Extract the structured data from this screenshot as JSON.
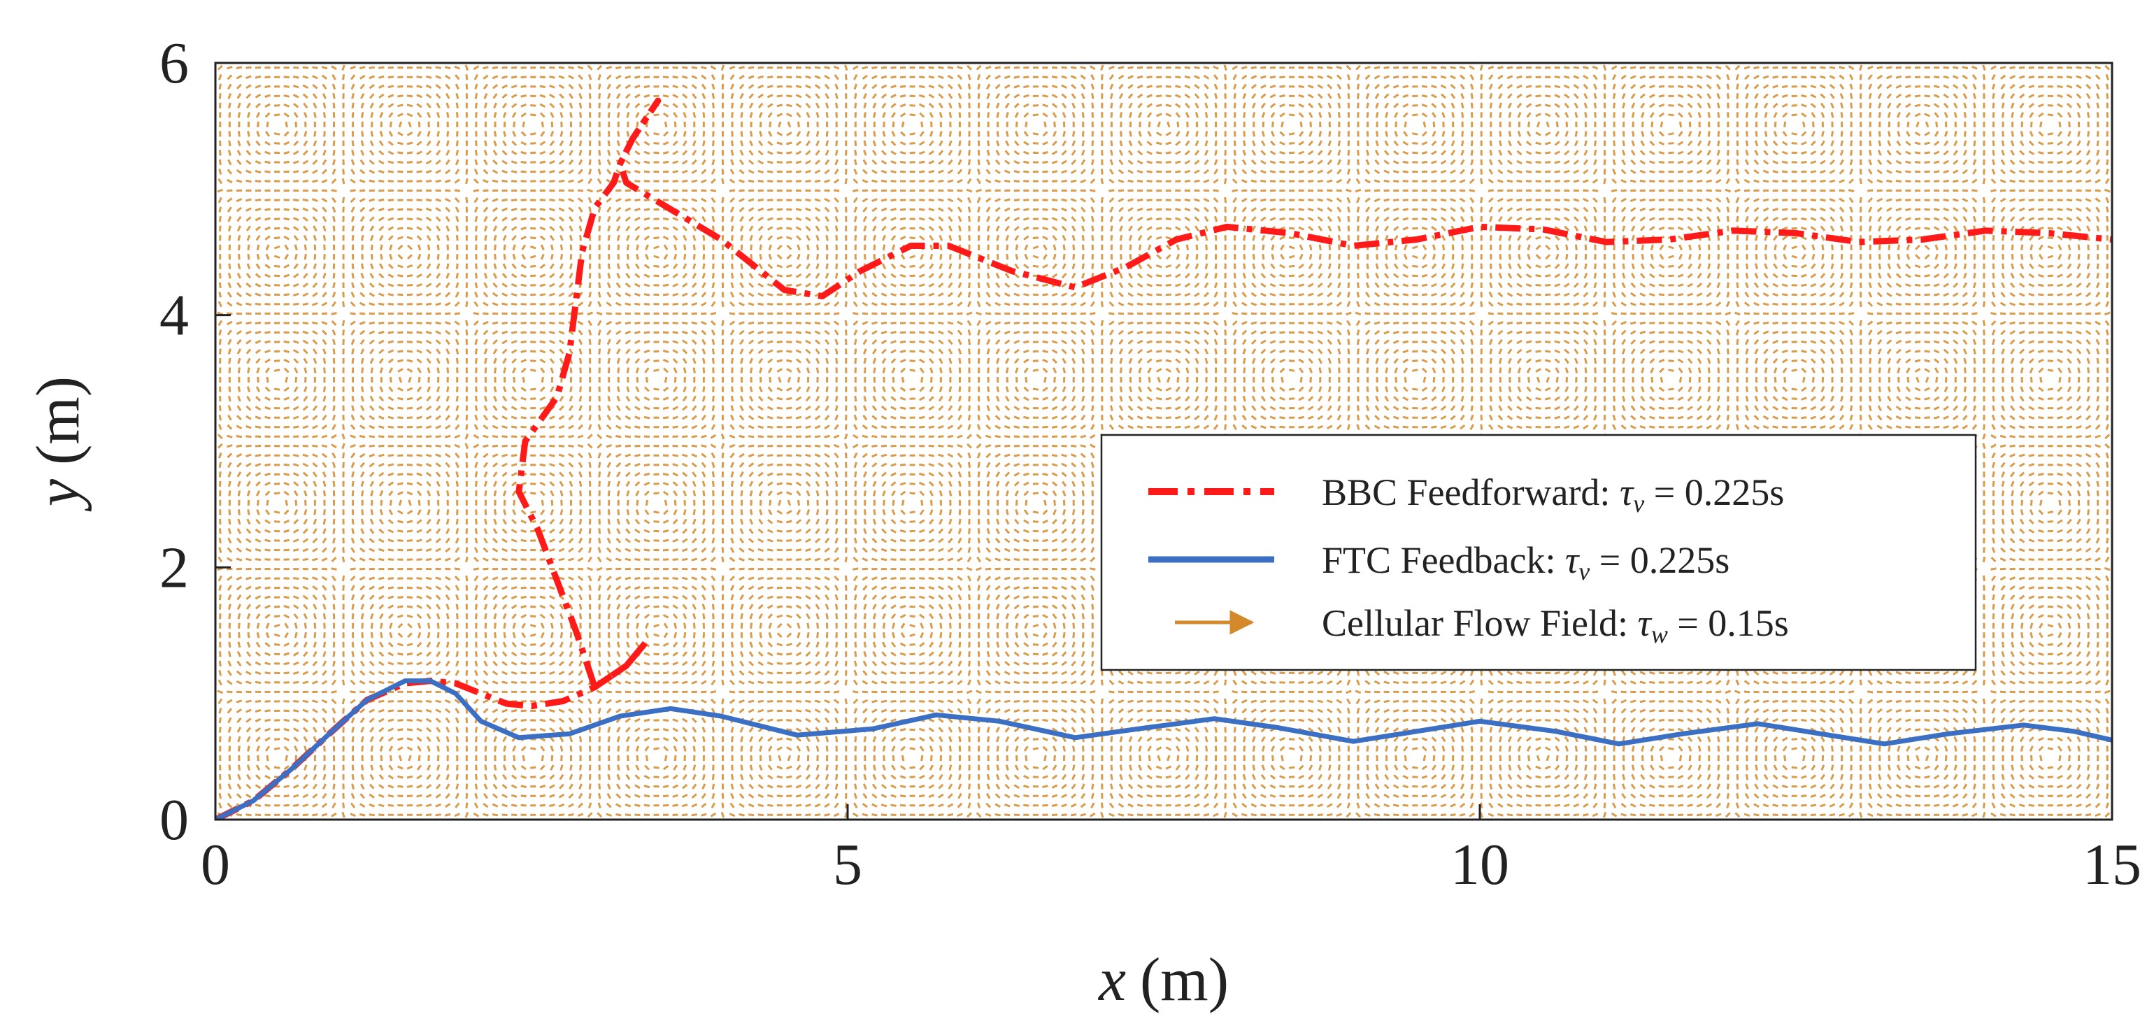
{
  "chart_data": {
    "type": "line",
    "title": "",
    "xlabel_var": "x",
    "xlabel_unit": "(m)",
    "ylabel_var": "y",
    "ylabel_unit": "(m)",
    "xlim": [
      0,
      15
    ],
    "ylim": [
      0,
      6
    ],
    "x_ticks": [
      0,
      5,
      10,
      15
    ],
    "y_ticks": [
      0,
      2,
      4,
      6
    ],
    "x_tick_labels": [
      "0",
      "5",
      "10",
      "15"
    ],
    "y_tick_labels": [
      "0",
      "2",
      "4",
      "6"
    ],
    "grid": false,
    "legend_position": "center-right",
    "flow_field": {
      "name": "Cellular Flow Field",
      "color": "#d4892a",
      "cell_size": [
        1.0,
        1.0
      ]
    },
    "series": [
      {
        "name": "BBC Feedforward",
        "color": "#ff1a1a",
        "style": "dashdot",
        "points": [
          [
            0,
            0
          ],
          [
            0.3,
            0.15
          ],
          [
            0.6,
            0.4
          ],
          [
            0.9,
            0.68
          ],
          [
            1.2,
            0.95
          ],
          [
            1.5,
            1.08
          ],
          [
            1.7,
            1.1
          ],
          [
            1.9,
            1.08
          ],
          [
            2.1,
            1.0
          ],
          [
            2.3,
            0.92
          ],
          [
            2.5,
            0.9
          ],
          [
            2.75,
            0.94
          ],
          [
            3.0,
            1.05
          ],
          [
            3.25,
            1.22
          ],
          [
            3.4,
            1.4
          ],
          [
            3.25,
            1.22
          ],
          [
            3.0,
            1.05
          ],
          [
            2.95,
            1.2
          ],
          [
            2.85,
            1.5
          ],
          [
            2.7,
            1.9
          ],
          [
            2.55,
            2.3
          ],
          [
            2.4,
            2.6
          ],
          [
            2.45,
            3.0
          ],
          [
            2.7,
            3.35
          ],
          [
            2.8,
            3.7
          ],
          [
            2.85,
            4.1
          ],
          [
            2.9,
            4.5
          ],
          [
            3.0,
            4.85
          ],
          [
            3.15,
            5.05
          ],
          [
            3.2,
            5.2
          ],
          [
            3.3,
            5.4
          ],
          [
            3.5,
            5.7
          ],
          [
            3.3,
            5.4
          ],
          [
            3.2,
            5.2
          ],
          [
            3.25,
            5.05
          ],
          [
            3.5,
            4.9
          ],
          [
            4.0,
            4.6
          ],
          [
            4.5,
            4.2
          ],
          [
            4.8,
            4.15
          ],
          [
            5.1,
            4.35
          ],
          [
            5.5,
            4.55
          ],
          [
            5.8,
            4.55
          ],
          [
            6.3,
            4.35
          ],
          [
            6.8,
            4.22
          ],
          [
            7.2,
            4.38
          ],
          [
            7.6,
            4.6
          ],
          [
            8.0,
            4.7
          ],
          [
            8.5,
            4.65
          ],
          [
            9.0,
            4.55
          ],
          [
            9.5,
            4.6
          ],
          [
            10.0,
            4.7
          ],
          [
            10.5,
            4.68
          ],
          [
            11.0,
            4.58
          ],
          [
            11.5,
            4.6
          ],
          [
            12.0,
            4.67
          ],
          [
            12.5,
            4.65
          ],
          [
            13.0,
            4.58
          ],
          [
            13.5,
            4.6
          ],
          [
            14.0,
            4.67
          ],
          [
            14.5,
            4.65
          ],
          [
            15.0,
            4.6
          ]
        ]
      },
      {
        "name": "FTC Feedback",
        "color": "#3a6fc4",
        "style": "solid",
        "points": [
          [
            0,
            0
          ],
          [
            0.3,
            0.15
          ],
          [
            0.6,
            0.4
          ],
          [
            0.9,
            0.68
          ],
          [
            1.2,
            0.95
          ],
          [
            1.5,
            1.1
          ],
          [
            1.7,
            1.1
          ],
          [
            1.9,
            1.0
          ],
          [
            2.1,
            0.78
          ],
          [
            2.4,
            0.65
          ],
          [
            2.8,
            0.68
          ],
          [
            3.2,
            0.82
          ],
          [
            3.6,
            0.88
          ],
          [
            4.0,
            0.82
          ],
          [
            4.6,
            0.67
          ],
          [
            5.2,
            0.72
          ],
          [
            5.7,
            0.83
          ],
          [
            6.2,
            0.78
          ],
          [
            6.8,
            0.65
          ],
          [
            7.3,
            0.72
          ],
          [
            7.9,
            0.8
          ],
          [
            8.4,
            0.73
          ],
          [
            9.0,
            0.62
          ],
          [
            9.5,
            0.7
          ],
          [
            10.0,
            0.78
          ],
          [
            10.6,
            0.7
          ],
          [
            11.1,
            0.6
          ],
          [
            11.6,
            0.68
          ],
          [
            12.2,
            0.76
          ],
          [
            12.7,
            0.68
          ],
          [
            13.2,
            0.6
          ],
          [
            13.7,
            0.68
          ],
          [
            14.3,
            0.75
          ],
          [
            14.7,
            0.7
          ],
          [
            15.0,
            0.63
          ]
        ]
      }
    ],
    "legend": [
      {
        "label": "BBC Feedforward: ",
        "sym": "τ",
        "sub": "v",
        "tail": " = 0.225s"
      },
      {
        "label": "FTC Feedback: ",
        "sym": "τ",
        "sub": "v",
        "tail": " = 0.225s"
      },
      {
        "label": "Cellular Flow Field: ",
        "sym": "τ",
        "sub": "w",
        "tail": " = 0.15s"
      }
    ]
  }
}
